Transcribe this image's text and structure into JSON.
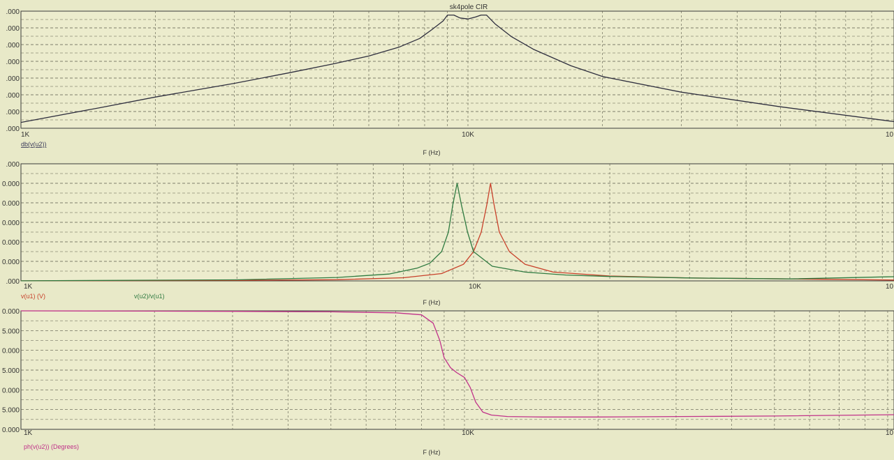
{
  "window": {
    "title": "sk4pole CIR"
  },
  "colors": {
    "background": "#e8e9c8",
    "plot_bg": "#ececcd",
    "grid": "#5a5a4a",
    "frame": "#3a3a3a",
    "trace_black": "#2e2e3e",
    "trace_red": "#c8402a",
    "trace_green": "#2f7a40",
    "trace_magenta": "#c0328a"
  },
  "chart_data": [
    {
      "type": "line",
      "title": "sk4pole CIR",
      "xlabel": "F (Hz)",
      "x_scale": "log",
      "x_tick_labels": [
        "1K",
        "10K",
        "10"
      ],
      "y_tick_labels": [
        ".000",
        ".000",
        ".000",
        ".000",
        ".000",
        ".000",
        ".000",
        ".000"
      ],
      "grid": true,
      "series": [
        {
          "name": "db(v(u2))",
          "color": "#2e2e3e",
          "x": [
            1000,
            1500,
            2000,
            3000,
            4000,
            5000,
            6000,
            7000,
            7800,
            8300,
            8800,
            9000,
            9300,
            9600,
            10000,
            10400,
            10700,
            11000,
            11500,
            12500,
            14000,
            17000,
            20000,
            30000,
            50000,
            100000
          ],
          "y": [
            -60,
            -52.5,
            -47,
            -40,
            -34.5,
            -30,
            -26,
            -21.5,
            -17,
            -12.5,
            -8,
            -5,
            -5,
            -6.5,
            -7,
            -6,
            -5,
            -5,
            -9.5,
            -16,
            -22.5,
            -31,
            -36.5,
            -44.5,
            -52,
            -61
          ]
        }
      ]
    },
    {
      "type": "line",
      "xlabel": "F (Hz)",
      "x_scale": "log",
      "x_tick_labels": [
        "1K",
        "10K",
        "10"
      ],
      "y_tick_labels": [
        ".000",
        "0.000",
        "0.000",
        "0.000",
        "0.000",
        "0.000",
        ".000"
      ],
      "grid": true,
      "series": [
        {
          "name": "v(u1) (V)",
          "color": "#c8402a",
          "x": [
            1000,
            3000,
            5000,
            7000,
            8500,
            9500,
            10000,
            10400,
            10700,
            10900,
            11100,
            11400,
            12000,
            13000,
            15000,
            20000,
            30000,
            50000,
            100000
          ],
          "y": [
            0.1,
            0.5,
            1.2,
            3.2,
            7.5,
            17,
            30,
            50,
            78,
            100,
            78,
            50,
            30,
            17,
            9,
            5,
            3,
            2,
            0.5
          ]
        },
        {
          "name": "v(u2)/v(u1)",
          "color": "#2f7a40",
          "x": [
            1000,
            3000,
            5000,
            6500,
            7500,
            8000,
            8500,
            8800,
            9000,
            9200,
            9400,
            9700,
            10000,
            11000,
            13000,
            16000,
            20000,
            30000,
            50000,
            100000
          ],
          "y": [
            0.1,
            1.1,
            3.5,
            7,
            13,
            18,
            30,
            50,
            78,
            100,
            78,
            50,
            30,
            15,
            9,
            6,
            4.5,
            3,
            2,
            5
          ]
        }
      ]
    },
    {
      "type": "line",
      "xlabel": "F (Hz)",
      "x_scale": "log",
      "x_tick_labels": [
        "1K",
        "10K",
        "10"
      ],
      "y_tick_labels": [
        "0.000",
        "5.000",
        "0.000",
        "5.000",
        "0.000",
        "5.000",
        "0.000"
      ],
      "grid": true,
      "series": [
        {
          "name": "ph(v(u2)) (Degrees)",
          "color": "#c0328a",
          "x": [
            1000,
            2000,
            3000,
            5000,
            7000,
            8000,
            8500,
            8800,
            9000,
            9300,
            9600,
            10000,
            10300,
            10600,
            11000,
            11500,
            12500,
            15000,
            20000,
            50000,
            100000
          ],
          "y": [
            0,
            -0.5,
            -1,
            -2,
            -4,
            -8,
            -25,
            -60,
            -95,
            -115,
            -125,
            -135,
            -155,
            -185,
            -205,
            -211,
            -214,
            -215,
            -215,
            -213,
            -210
          ]
        }
      ]
    }
  ]
}
